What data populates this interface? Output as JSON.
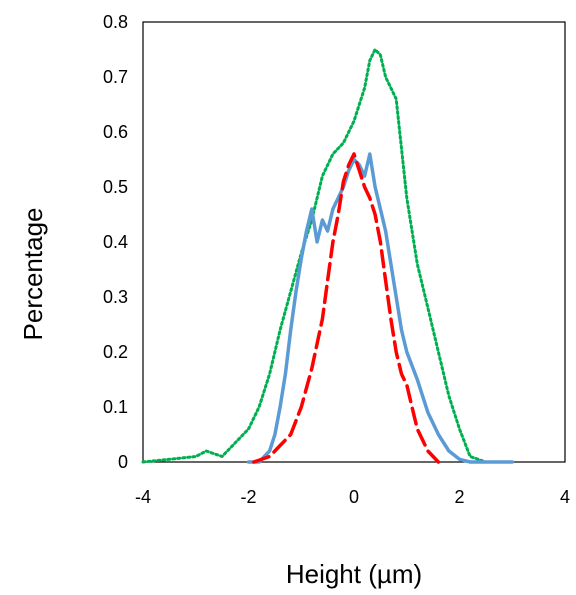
{
  "chart_data": {
    "type": "line",
    "title": "",
    "xlabel": "Height (µm)",
    "ylabel": "Percentage",
    "xlim": [
      -4,
      4
    ],
    "ylim": [
      0,
      0.8
    ],
    "xticks": [
      "-4",
      "-2",
      "0",
      "2",
      "4"
    ],
    "yticks": [
      "0",
      "0.1",
      "0.2",
      "0.3",
      "0.4",
      "0.5",
      "0.6",
      "0.7",
      "0.8"
    ],
    "grid": false,
    "legend": "none",
    "series": [
      {
        "color": "#00b050",
        "style": "dotted",
        "x": [
          -4.0,
          -3.5,
          -3.0,
          -2.8,
          -2.5,
          -2.2,
          -2.0,
          -1.8,
          -1.6,
          -1.4,
          -1.2,
          -1.0,
          -0.8,
          -0.6,
          -0.4,
          -0.2,
          0.0,
          0.2,
          0.3,
          0.4,
          0.5,
          0.6,
          0.8,
          1.0,
          1.2,
          1.4,
          1.6,
          1.8,
          2.0,
          2.2,
          2.5,
          3.0
        ],
        "y": [
          0.0,
          0.005,
          0.01,
          0.02,
          0.01,
          0.04,
          0.06,
          0.1,
          0.16,
          0.24,
          0.31,
          0.38,
          0.44,
          0.52,
          0.56,
          0.58,
          0.62,
          0.68,
          0.73,
          0.75,
          0.74,
          0.7,
          0.66,
          0.48,
          0.36,
          0.28,
          0.2,
          0.12,
          0.06,
          0.01,
          0.0,
          0.0
        ]
      },
      {
        "color": "#5b9bd5",
        "style": "solid",
        "x": [
          -2.0,
          -1.8,
          -1.6,
          -1.5,
          -1.4,
          -1.3,
          -1.2,
          -1.1,
          -1.0,
          -0.9,
          -0.8,
          -0.7,
          -0.6,
          -0.5,
          -0.4,
          -0.3,
          -0.2,
          -0.1,
          0.0,
          0.1,
          0.2,
          0.3,
          0.4,
          0.5,
          0.6,
          0.7,
          0.8,
          0.9,
          1.0,
          1.2,
          1.4,
          1.6,
          1.8,
          2.0,
          2.2,
          2.5,
          3.0
        ],
        "y": [
          0.0,
          0.0,
          0.02,
          0.05,
          0.1,
          0.16,
          0.24,
          0.31,
          0.37,
          0.42,
          0.46,
          0.4,
          0.44,
          0.42,
          0.46,
          0.48,
          0.5,
          0.53,
          0.55,
          0.54,
          0.52,
          0.56,
          0.5,
          0.46,
          0.42,
          0.36,
          0.3,
          0.24,
          0.2,
          0.15,
          0.09,
          0.05,
          0.02,
          0.005,
          0.0,
          0.0,
          0.0
        ]
      },
      {
        "color": "#ff0000",
        "style": "dashed",
        "x": [
          -1.9,
          -1.6,
          -1.5,
          -1.4,
          -1.2,
          -1.0,
          -0.8,
          -0.6,
          -0.5,
          -0.4,
          -0.3,
          -0.2,
          -0.1,
          0.0,
          0.1,
          0.2,
          0.3,
          0.4,
          0.5,
          0.6,
          0.7,
          0.8,
          0.9,
          1.0,
          1.1,
          1.2,
          1.3,
          1.4,
          1.5,
          1.6
        ],
        "y": [
          0.0,
          0.01,
          0.02,
          0.03,
          0.05,
          0.1,
          0.17,
          0.26,
          0.33,
          0.4,
          0.45,
          0.51,
          0.54,
          0.56,
          0.53,
          0.5,
          0.48,
          0.45,
          0.4,
          0.33,
          0.26,
          0.2,
          0.16,
          0.14,
          0.1,
          0.06,
          0.04,
          0.02,
          0.01,
          0.0
        ]
      }
    ]
  }
}
